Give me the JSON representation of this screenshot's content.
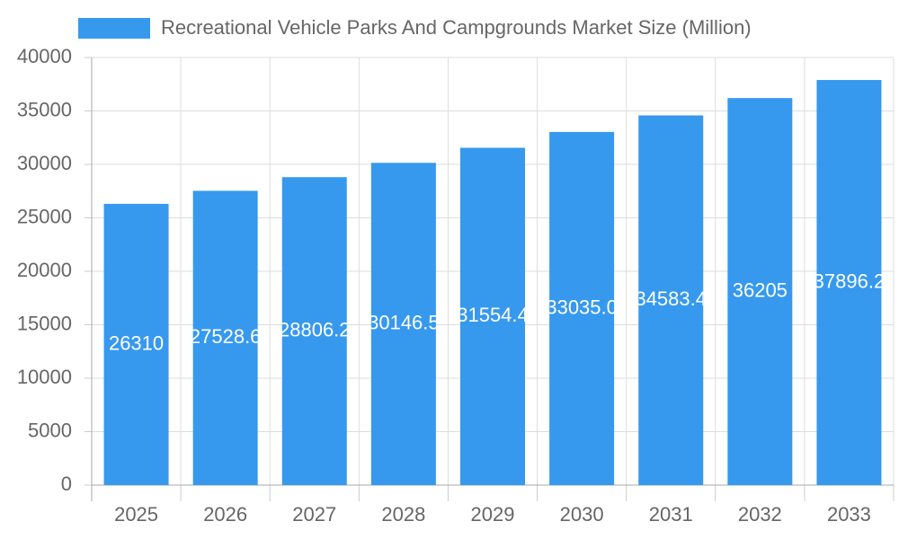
{
  "chart_data": {
    "type": "bar",
    "legend_label": "Recreational Vehicle Parks And Campgrounds Market Size (Million)",
    "categories": [
      "2025",
      "2026",
      "2027",
      "2028",
      "2029",
      "2030",
      "2031",
      "2032",
      "2033"
    ],
    "values": [
      26310,
      27528.6,
      28806.2,
      30146.5,
      31554.4,
      33035.0,
      34583.4,
      36205,
      37896.2
    ],
    "value_labels": [
      "26310",
      "27528.6",
      "28806.2",
      "30146.5",
      "31554.4",
      "33035.0",
      "34583.4",
      "36205",
      "37896.2"
    ],
    "color": "#3699ee",
    "ylim": [
      0,
      40000
    ],
    "yticks": [
      0,
      5000,
      10000,
      15000,
      20000,
      25000,
      30000,
      35000,
      40000
    ],
    "grid": true,
    "legend": "top"
  }
}
